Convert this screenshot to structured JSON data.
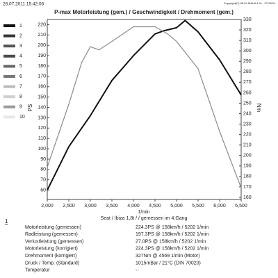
{
  "header": {
    "date": "28.07.2011 15:42:08",
    "copyright": "Copyright(C) 98-04 MAHA 4.0x - 27/10/04"
  },
  "legend": {
    "labels": [
      "1",
      "2",
      "3",
      "4",
      "5",
      "6",
      "7",
      "8",
      "9",
      "10"
    ],
    "colors": [
      "#111111",
      "#333333",
      "#555555",
      "#4a4a4a",
      "#666666",
      "#777777",
      "#bbbbbb",
      "#d0d0d0",
      "#999999",
      "#e8e8e8"
    ]
  },
  "chart_data": {
    "type": "line",
    "title": "P-max Motorleistung (gem.) / Geschwindigkeit / Drehmoment (gem.)",
    "x_label": "1/min",
    "y_label": "PS",
    "y2_label": "Nm",
    "xlim": [
      2000,
      6500
    ],
    "xticks": [
      {
        "value": 2000,
        "label": "2,000"
      },
      {
        "value": 2500,
        "label": "2,500"
      },
      {
        "value": 3000,
        "label": "3,000"
      },
      {
        "value": 3500,
        "label": "3,500"
      },
      {
        "value": 4000,
        "label": "4,000"
      },
      {
        "value": 4500,
        "label": "4,500"
      },
      {
        "value": 5000,
        "label": "5,000"
      },
      {
        "value": 5500,
        "label": "5,500"
      },
      {
        "value": 6000,
        "label": "6,000"
      },
      {
        "value": 6500,
        "label": "6,500"
      }
    ],
    "ylim": [
      51,
      225
    ],
    "yticks": [
      60,
      70,
      80,
      90,
      100,
      110,
      120,
      130,
      140,
      150,
      160,
      170,
      180,
      190,
      200,
      210,
      220
    ],
    "y2lim": [
      158,
      330
    ],
    "y2ticks": [
      160,
      170,
      180,
      190,
      200,
      210,
      220,
      230,
      240,
      250,
      260,
      270,
      280,
      290,
      300,
      310,
      320,
      330
    ],
    "series": [
      {
        "color": "#111111",
        "x": [
          2000,
          2500,
          3000,
          3500,
          4000,
          4500,
          4700,
          5000,
          5200,
          5500,
          6000,
          6500
        ],
        "values": [
          60,
          102,
          132,
          166,
          190,
          211,
          214,
          217,
          224,
          213,
          186,
          152
        ]
      },
      {
        "color": "#8a8a8a",
        "axis": "y2",
        "x": [
          2000,
          2500,
          2800,
          3000,
          3200,
          3500,
          4000,
          4500,
          4800,
          5000,
          5500,
          6000,
          6500
        ],
        "values": [
          189,
          249,
          289,
          304,
          301,
          309,
          323,
          323,
          316,
          309,
          283,
          223,
          169
        ]
      }
    ]
  },
  "vehicle": "Seat / Ibiza 1,8t /  / gemessen im 4.Gang",
  "results": {
    "index": "1",
    "rows": [
      [
        "Motorleistung (gemessen)",
        "224.3PS @ 158km/h / 5202 1/min"
      ],
      [
        "Radleistung (gemessen)",
        "197.3PS @ 158km/h / 5202 1/min"
      ],
      [
        "Verlustleistung (gemessen)",
        "27.0PS @ 158km/h / 5202 1/min"
      ],
      [
        "Motorleistung (korrigiert)",
        "224.3PS @ 158km/h / 5202 1/min"
      ],
      [
        "Drehmoment (korrigiert)",
        "327Nm @ 4569 1/min (Motor)"
      ],
      [
        "Druck / Temp. (Standard)",
        "1015mBar / 21°C  (DIN 70020)"
      ],
      [
        "Temperatur",
        "--"
      ]
    ]
  }
}
